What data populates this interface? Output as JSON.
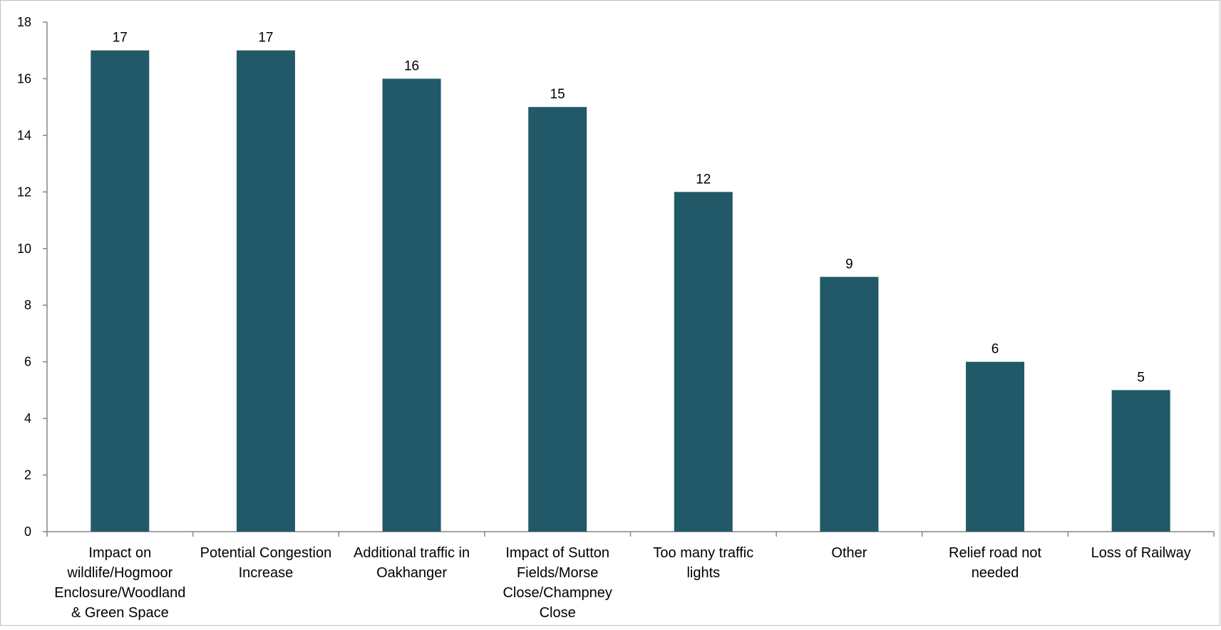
{
  "chart_data": {
    "type": "bar",
    "title": "",
    "xlabel": "",
    "ylabel": "",
    "ylim": [
      0,
      18
    ],
    "yticks": [
      0,
      2,
      4,
      6,
      8,
      10,
      12,
      14,
      16,
      18
    ],
    "grid": false,
    "legend": "none",
    "bar_color": "#215968",
    "categories": [
      [
        "Impact on",
        "wildlife/Hogmoor",
        "Enclosure/Woodland",
        "& Green Space"
      ],
      [
        "Potential Congestion",
        "Increase"
      ],
      [
        "Additional traffic in",
        "Oakhanger"
      ],
      [
        "Impact of Sutton",
        "Fields/Morse",
        "Close/Champney",
        "Close"
      ],
      [
        "Too many traffic",
        "lights"
      ],
      [
        "Other"
      ],
      [
        "Relief road not",
        "needed"
      ],
      [
        "Loss of Railway"
      ]
    ],
    "values": [
      17,
      17,
      16,
      15,
      12,
      9,
      6,
      5
    ],
    "data_labels": [
      "17",
      "17",
      "16",
      "15",
      "12",
      "9",
      "6",
      "5"
    ]
  }
}
